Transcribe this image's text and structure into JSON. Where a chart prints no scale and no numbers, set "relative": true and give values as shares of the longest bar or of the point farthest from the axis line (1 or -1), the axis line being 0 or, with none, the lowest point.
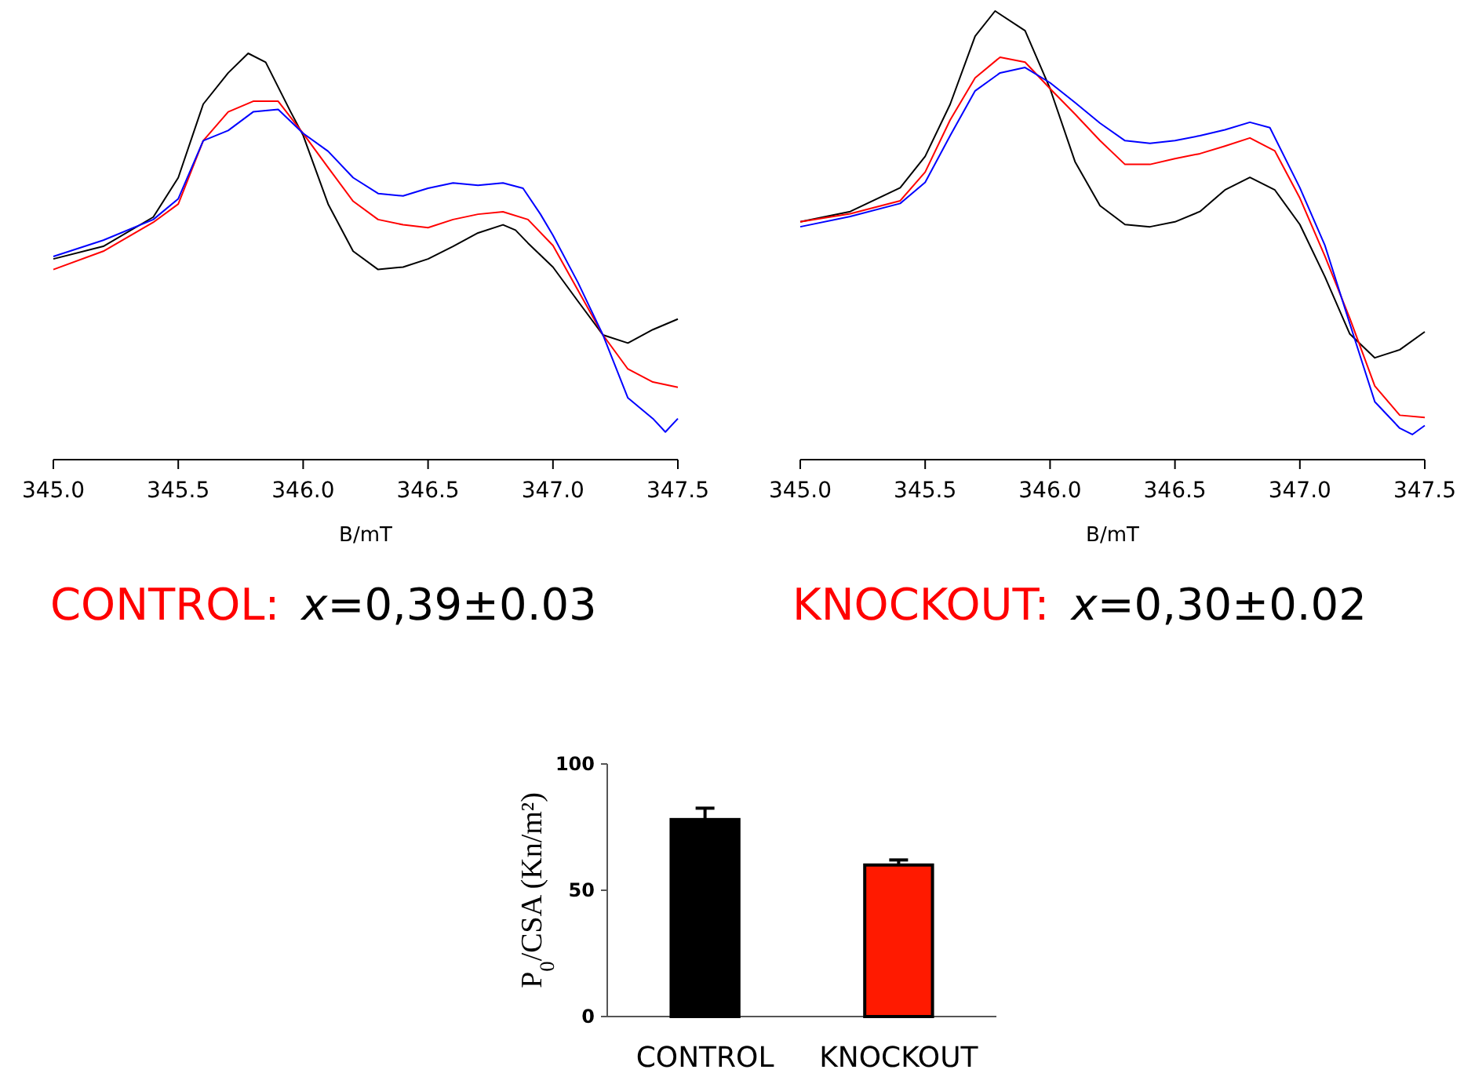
{
  "chart_data": [
    {
      "type": "line",
      "relative": true,
      "xlabel": "B/mT",
      "xlim": [
        345.0,
        347.5
      ],
      "xticks": [
        {
          "value": 345.0,
          "label": "345.0"
        },
        {
          "value": 345.5,
          "label": "345.5"
        },
        {
          "value": 346.0,
          "label": "346.0"
        },
        {
          "value": 346.5,
          "label": "346.5"
        },
        {
          "value": 347.0,
          "label": "347.0"
        },
        {
          "value": 347.5,
          "label": "347.5"
        }
      ],
      "marker": "none",
      "line_style": "solid",
      "grid": false,
      "annotations": [
        "CONTROL:",
        "x=0,39±0.03"
      ],
      "series": [
        {
          "color": "#000000",
          "x": [
            345.0,
            345.2,
            345.4,
            345.5,
            345.6,
            345.7,
            345.78,
            345.85,
            345.95,
            346.0,
            346.1,
            346.2,
            346.3,
            346.4,
            346.5,
            346.6,
            346.7,
            346.8,
            346.85,
            346.9,
            347.0,
            347.1,
            347.2,
            347.3,
            347.4,
            347.5
          ],
          "values": [
            0.494,
            0.525,
            0.597,
            0.694,
            0.875,
            0.952,
            1.0,
            0.978,
            0.856,
            0.798,
            0.629,
            0.513,
            0.468,
            0.474,
            0.494,
            0.525,
            0.558,
            0.578,
            0.565,
            0.533,
            0.474,
            0.39,
            0.307,
            0.287,
            0.32,
            0.346
          ]
        },
        {
          "color": "#ff0000",
          "x": [
            345.0,
            345.2,
            345.4,
            345.5,
            345.6,
            345.7,
            345.8,
            345.9,
            346.0,
            346.1,
            346.2,
            346.3,
            346.4,
            346.5,
            346.6,
            346.7,
            346.8,
            346.9,
            347.0,
            347.1,
            347.2,
            347.3,
            347.4,
            347.5
          ],
          "values": [
            0.468,
            0.513,
            0.584,
            0.629,
            0.785,
            0.856,
            0.882,
            0.882,
            0.803,
            0.719,
            0.636,
            0.591,
            0.578,
            0.571,
            0.591,
            0.604,
            0.61,
            0.591,
            0.527,
            0.417,
            0.307,
            0.223,
            0.191,
            0.178
          ]
        },
        {
          "color": "#0000ff",
          "x": [
            345.0,
            345.2,
            345.4,
            345.5,
            345.6,
            345.7,
            345.8,
            345.9,
            346.0,
            346.1,
            346.2,
            346.3,
            346.4,
            346.5,
            346.6,
            346.7,
            346.8,
            346.88,
            346.95,
            347.0,
            347.1,
            347.2,
            347.3,
            347.4,
            347.45,
            347.5
          ],
          "values": [
            0.5,
            0.54,
            0.591,
            0.642,
            0.785,
            0.81,
            0.856,
            0.862,
            0.803,
            0.759,
            0.694,
            0.655,
            0.649,
            0.668,
            0.681,
            0.675,
            0.681,
            0.668,
            0.604,
            0.552,
            0.436,
            0.307,
            0.152,
            0.101,
            0.068,
            0.101
          ]
        }
      ]
    },
    {
      "type": "line",
      "relative": true,
      "xlabel": "B/mT",
      "xlim": [
        345.0,
        347.5
      ],
      "xticks": [
        {
          "value": 345.0,
          "label": "345.0"
        },
        {
          "value": 345.5,
          "label": "345.5"
        },
        {
          "value": 346.0,
          "label": "346.0"
        },
        {
          "value": 346.5,
          "label": "346.5"
        },
        {
          "value": 347.0,
          "label": "347.0"
        },
        {
          "value": 347.5,
          "label": "347.5"
        }
      ],
      "marker": "none",
      "line_style": "solid",
      "grid": false,
      "annotations": [
        "KNOCKOUT:",
        "x=0,30±0.02"
      ],
      "series": [
        {
          "color": "#000000",
          "x": [
            345.0,
            345.2,
            345.4,
            345.5,
            345.6,
            345.7,
            345.78,
            345.9,
            346.0,
            346.1,
            346.2,
            346.3,
            346.4,
            346.5,
            346.6,
            346.7,
            346.8,
            346.9,
            347.0,
            347.1,
            347.2,
            347.3,
            347.4,
            347.5
          ],
          "values": [
            0.53,
            0.553,
            0.606,
            0.676,
            0.792,
            0.944,
            1.0,
            0.956,
            0.827,
            0.664,
            0.566,
            0.524,
            0.519,
            0.53,
            0.553,
            0.601,
            0.629,
            0.601,
            0.524,
            0.408,
            0.28,
            0.227,
            0.245,
            0.285
          ]
        },
        {
          "color": "#ff0000",
          "x": [
            345.0,
            345.2,
            345.4,
            345.5,
            345.6,
            345.7,
            345.8,
            345.9,
            346.0,
            346.1,
            346.2,
            346.3,
            346.4,
            346.5,
            346.6,
            346.7,
            346.8,
            346.9,
            347.0,
            347.1,
            347.2,
            347.3,
            347.4,
            347.5
          ],
          "values": [
            0.53,
            0.548,
            0.577,
            0.641,
            0.757,
            0.851,
            0.897,
            0.886,
            0.827,
            0.77,
            0.711,
            0.658,
            0.658,
            0.671,
            0.682,
            0.699,
            0.717,
            0.688,
            0.583,
            0.454,
            0.315,
            0.164,
            0.099,
            0.094
          ]
        },
        {
          "color": "#0000ff",
          "x": [
            345.0,
            345.2,
            345.4,
            345.5,
            345.6,
            345.7,
            345.8,
            345.9,
            346.0,
            346.1,
            346.2,
            346.3,
            346.4,
            346.5,
            346.6,
            346.7,
            346.8,
            346.88,
            347.0,
            347.1,
            347.2,
            347.3,
            347.4,
            347.45,
            347.5
          ],
          "values": [
            0.519,
            0.542,
            0.571,
            0.618,
            0.722,
            0.822,
            0.862,
            0.874,
            0.84,
            0.796,
            0.75,
            0.711,
            0.705,
            0.711,
            0.722,
            0.735,
            0.752,
            0.74,
            0.606,
            0.478,
            0.303,
            0.129,
            0.07,
            0.056,
            0.076
          ]
        }
      ]
    },
    {
      "type": "bar",
      "categories": [
        "CONTROL",
        "KNOCKOUT"
      ],
      "values": [
        78,
        60
      ],
      "errors": [
        4.5,
        2
      ],
      "colors": [
        "#000000",
        "#ff1a00"
      ],
      "ylabel": "P$_{0}$/CSA (Kn/m²)",
      "ylim": [
        0,
        100
      ],
      "yticks": [
        0,
        50,
        100
      ],
      "grid": false
    }
  ]
}
